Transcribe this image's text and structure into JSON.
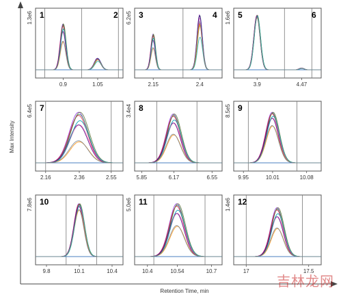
{
  "figure": {
    "ylabel": "Max Intensity",
    "xlabel": "Retention Time, min",
    "watermark": "吉林龙网"
  },
  "chart_data": [
    {
      "type": "line",
      "peaks": [
        "1",
        "2"
      ],
      "ymax_label": "1.3e6",
      "xlim": [
        0.78,
        1.16
      ],
      "xticks": [
        0.9,
        1.05
      ],
      "ticklabels": [
        "0.9",
        "1.05"
      ],
      "dividers": [
        0.82,
        0.98,
        1.14
      ],
      "peak_list": [
        {
          "label": "1",
          "center": 0.9,
          "height": 0.8,
          "width": 0.012,
          "spread": 0.5
        },
        {
          "label": "2",
          "center": 1.05,
          "height": 0.2,
          "width": 0.014,
          "spread": 0.3
        }
      ]
    },
    {
      "type": "line",
      "peaks": [
        "3",
        "4"
      ],
      "ymax_label": "6.2e5",
      "xlim": [
        2.05,
        2.52
      ],
      "xticks": [
        2.15,
        2.4
      ],
      "ticklabels": [
        "2.15",
        "2.4"
      ],
      "dividers": [
        2.31
      ],
      "peak_list": [
        {
          "label": "3",
          "center": 2.15,
          "height": 0.62,
          "width": 0.012,
          "spread": 0.5
        },
        {
          "label": "4",
          "center": 2.4,
          "height": 0.95,
          "width": 0.014,
          "spread": 0.45
        }
      ]
    },
    {
      "type": "line",
      "peaks": [
        "5",
        "6"
      ],
      "ymax_label": "1.6e6",
      "xlim": [
        3.6,
        4.72
      ],
      "xticks": [
        3.9,
        4.47
      ],
      "ticklabels": [
        "3.9",
        "4.47"
      ],
      "dividers": [
        4.25,
        4.6
      ],
      "peak_list": [
        {
          "label": "5",
          "center": 3.9,
          "height": 0.95,
          "width": 0.04,
          "spread": 0.05
        },
        {
          "label": "6",
          "center": 4.47,
          "height": 0.03,
          "width": 0.03,
          "spread": 0.3
        }
      ]
    },
    {
      "type": "line",
      "peaks": [
        "7"
      ],
      "ymax_label": "6.4e5",
      "xlim": [
        2.1,
        2.62
      ],
      "xticks": [
        2.16,
        2.36,
        2.55
      ],
      "ticklabels": [
        "2.16",
        "2.36",
        "2.55"
      ],
      "dividers": [
        2.16,
        2.55
      ],
      "peak_list": [
        {
          "label": "7",
          "center": 2.36,
          "height": 0.88,
          "width": 0.055,
          "spread": 0.75
        }
      ]
    },
    {
      "type": "line",
      "peaks": [
        "8"
      ],
      "ymax_label": "3.4e4",
      "xlim": [
        5.78,
        6.65
      ],
      "xticks": [
        5.85,
        6.17,
        6.55
      ],
      "ticklabels": [
        "5.85",
        "6.17",
        "6.55"
      ],
      "dividers": [
        6.0,
        6.4
      ],
      "peak_list": [
        {
          "label": "8",
          "center": 6.17,
          "height": 0.85,
          "width": 0.07,
          "spread": 0.55
        }
      ]
    },
    {
      "type": "line",
      "peaks": [
        "9"
      ],
      "ymax_label": "8.5e5",
      "xlim": [
        9.93,
        10.11
      ],
      "xticks": [
        9.95,
        10.01,
        10.08
      ],
      "ticklabels": [
        "9.95",
        "10.01",
        "10.08"
      ],
      "dividers": [
        9.96,
        10.06
      ],
      "peak_list": [
        {
          "label": "9",
          "center": 10.01,
          "height": 0.88,
          "width": 0.013,
          "spread": 0.35
        }
      ]
    },
    {
      "type": "line",
      "peaks": [
        "10"
      ],
      "ymax_label": "7.8e6",
      "xlim": [
        9.7,
        10.5
      ],
      "xticks": [
        9.8,
        10.1,
        10.4
      ],
      "ticklabels": [
        "9.8",
        "10.1",
        "10.4"
      ],
      "dividers": [
        9.98,
        10.26
      ],
      "peak_list": [
        {
          "label": "10",
          "center": 10.1,
          "height": 0.92,
          "width": 0.045,
          "spread": 0.15
        }
      ]
    },
    {
      "type": "line",
      "peaks": [
        "11"
      ],
      "ymax_label": "5.0e6",
      "xlim": [
        10.34,
        10.75
      ],
      "xticks": [
        10.4,
        10.54,
        10.7
      ],
      "ticklabels": [
        "10.4",
        "10.54",
        "10.7"
      ],
      "dividers": [
        10.43,
        10.67
      ],
      "peak_list": [
        {
          "label": "11",
          "center": 10.54,
          "height": 0.92,
          "width": 0.035,
          "spread": 0.55
        }
      ]
    },
    {
      "type": "line",
      "peaks": [
        "12"
      ],
      "ymax_label": "1.4e6",
      "xlim": [
        16.9,
        17.6
      ],
      "xticks": [
        17.0,
        17.5
      ],
      "ticklabels": [
        "17",
        "17.5"
      ],
      "dividers": [
        17.0,
        17.45
      ],
      "peak_list": [
        {
          "label": "12",
          "center": 17.25,
          "height": 0.85,
          "width": 0.05,
          "spread": 0.55
        }
      ]
    }
  ],
  "colors": [
    "#8a2be2",
    "#2e8b57",
    "#1e90ff",
    "#dc143c",
    "#ff69b4",
    "#556b2f",
    "#4b0082",
    "#ff8c00",
    "#20b2aa",
    "#708090"
  ]
}
